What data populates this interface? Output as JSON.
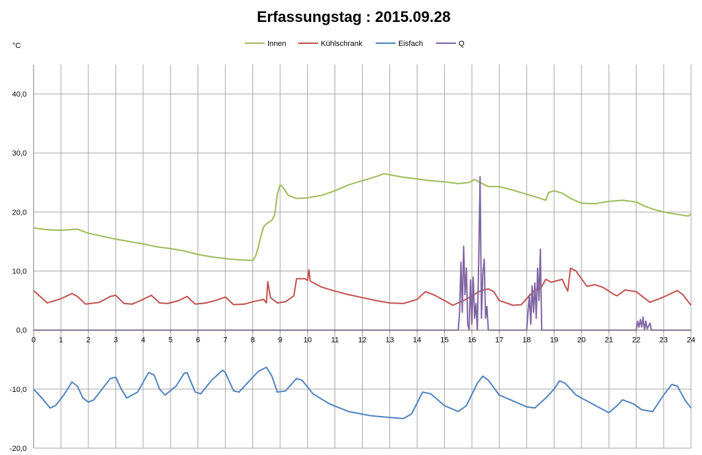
{
  "chart_data": {
    "type": "line",
    "title": "Erfassungstag  : 2015.09.28",
    "ylabel": "°C",
    "xlabel": "",
    "xlim": [
      0,
      24
    ],
    "ylim": [
      -20,
      45
    ],
    "grid": true,
    "legend_placement": "top-center",
    "x_ticks": [
      "0",
      "1",
      "2",
      "3",
      "4",
      "5",
      "6",
      "7",
      "8",
      "9",
      "10",
      "11",
      "12",
      "13",
      "14",
      "15",
      "16",
      "17",
      "18",
      "19",
      "20",
      "21",
      "22",
      "23",
      "24"
    ],
    "y_ticks": [
      {
        "value": 40,
        "label": "40,0"
      },
      {
        "value": 30,
        "label": "30,0"
      },
      {
        "value": 20,
        "label": "20,0"
      },
      {
        "value": 10,
        "label": "10,0"
      },
      {
        "value": 0,
        "label": "0,0"
      },
      {
        "value": -10,
        "label": "-10,0"
      },
      {
        "value": -20,
        "label": "-20,0"
      }
    ],
    "series": [
      {
        "name": "Innen",
        "color": "#9bbb59",
        "points": [
          [
            0,
            17.3
          ],
          [
            0.5,
            17.0
          ],
          [
            1,
            16.9
          ],
          [
            1.6,
            17.1
          ],
          [
            2,
            16.4
          ],
          [
            2.5,
            15.9
          ],
          [
            3,
            15.4
          ],
          [
            3.5,
            15.0
          ],
          [
            4,
            14.6
          ],
          [
            4.5,
            14.1
          ],
          [
            5,
            13.8
          ],
          [
            5.5,
            13.4
          ],
          [
            6,
            12.8
          ],
          [
            6.5,
            12.4
          ],
          [
            7,
            12.1
          ],
          [
            7.5,
            11.9
          ],
          [
            8,
            11.8
          ],
          [
            8.1,
            12.5
          ],
          [
            8.2,
            14.0
          ],
          [
            8.3,
            16.0
          ],
          [
            8.4,
            17.5
          ],
          [
            8.5,
            18.0
          ],
          [
            8.7,
            18.6
          ],
          [
            8.8,
            19.5
          ],
          [
            8.9,
            23.0
          ],
          [
            9.0,
            24.6
          ],
          [
            9.1,
            24.2
          ],
          [
            9.3,
            22.8
          ],
          [
            9.6,
            22.3
          ],
          [
            10,
            22.4
          ],
          [
            10.5,
            22.8
          ],
          [
            11,
            23.6
          ],
          [
            11.5,
            24.6
          ],
          [
            12,
            25.3
          ],
          [
            12.5,
            26.0
          ],
          [
            12.8,
            26.5
          ],
          [
            13,
            26.3
          ],
          [
            13.5,
            25.9
          ],
          [
            14,
            25.6
          ],
          [
            14.5,
            25.3
          ],
          [
            15,
            25.1
          ],
          [
            15.5,
            24.8
          ],
          [
            15.9,
            25.0
          ],
          [
            16.1,
            25.5
          ],
          [
            16.3,
            25.0
          ],
          [
            16.6,
            24.3
          ],
          [
            17,
            24.3
          ],
          [
            17.5,
            23.7
          ],
          [
            18,
            23.0
          ],
          [
            18.5,
            22.3
          ],
          [
            18.7,
            22.0
          ],
          [
            18.8,
            23.3
          ],
          [
            19,
            23.6
          ],
          [
            19.3,
            23.2
          ],
          [
            19.6,
            22.3
          ],
          [
            20,
            21.5
          ],
          [
            20.5,
            21.4
          ],
          [
            21,
            21.8
          ],
          [
            21.5,
            22.0
          ],
          [
            22,
            21.7
          ],
          [
            22.3,
            21.0
          ],
          [
            22.6,
            20.5
          ],
          [
            23,
            20.0
          ],
          [
            23.5,
            19.6
          ],
          [
            23.9,
            19.3
          ],
          [
            24,
            19.7
          ]
        ]
      },
      {
        "name": "Kühlschrank",
        "color": "#c0504d",
        "points": [
          [
            0,
            6.7
          ],
          [
            0.5,
            4.6
          ],
          [
            1,
            5.3
          ],
          [
            1.4,
            6.2
          ],
          [
            1.6,
            5.7
          ],
          [
            1.9,
            4.4
          ],
          [
            2.4,
            4.7
          ],
          [
            2.8,
            5.7
          ],
          [
            3,
            5.9
          ],
          [
            3.3,
            4.5
          ],
          [
            3.6,
            4.4
          ],
          [
            4,
            5.2
          ],
          [
            4.3,
            5.9
          ],
          [
            4.6,
            4.6
          ],
          [
            4.9,
            4.5
          ],
          [
            5.3,
            5.0
          ],
          [
            5.6,
            5.7
          ],
          [
            5.9,
            4.4
          ],
          [
            6.3,
            4.6
          ],
          [
            6.7,
            5.1
          ],
          [
            7,
            5.6
          ],
          [
            7.3,
            4.3
          ],
          [
            7.7,
            4.4
          ],
          [
            8,
            4.8
          ],
          [
            8.4,
            5.2
          ],
          [
            8.5,
            4.6
          ],
          [
            8.55,
            8.2
          ],
          [
            8.65,
            5.5
          ],
          [
            8.9,
            4.6
          ],
          [
            9.2,
            4.8
          ],
          [
            9.5,
            5.8
          ],
          [
            9.6,
            8.7
          ],
          [
            9.9,
            8.7
          ],
          [
            10.0,
            8.4
          ],
          [
            10.05,
            10.2
          ],
          [
            10.1,
            8.3
          ],
          [
            10.5,
            7.3
          ],
          [
            11,
            6.6
          ],
          [
            11.5,
            6.0
          ],
          [
            12,
            5.5
          ],
          [
            12.5,
            5.0
          ],
          [
            13,
            4.6
          ],
          [
            13.5,
            4.5
          ],
          [
            14,
            5.2
          ],
          [
            14.3,
            6.5
          ],
          [
            14.6,
            6.0
          ],
          [
            15,
            5.0
          ],
          [
            15.3,
            4.2
          ],
          [
            15.7,
            5.0
          ],
          [
            16,
            5.8
          ],
          [
            16.3,
            6.6
          ],
          [
            16.6,
            7.0
          ],
          [
            16.8,
            6.5
          ],
          [
            17,
            5.0
          ],
          [
            17.5,
            4.2
          ],
          [
            17.8,
            4.3
          ],
          [
            18.1,
            5.8
          ],
          [
            18.3,
            6.8
          ],
          [
            18.5,
            7.0
          ],
          [
            18.7,
            8.6
          ],
          [
            18.9,
            8.1
          ],
          [
            19.3,
            8.6
          ],
          [
            19.4,
            7.5
          ],
          [
            19.5,
            6.6
          ],
          [
            19.6,
            10.5
          ],
          [
            19.8,
            10.0
          ],
          [
            20.2,
            7.4
          ],
          [
            20.5,
            7.7
          ],
          [
            20.8,
            7.2
          ],
          [
            21.2,
            6.0
          ],
          [
            21.3,
            5.8
          ],
          [
            21.6,
            6.8
          ],
          [
            22,
            6.5
          ],
          [
            22.5,
            4.7
          ],
          [
            23,
            5.6
          ],
          [
            23.5,
            6.7
          ],
          [
            23.7,
            6.0
          ],
          [
            24,
            4.2
          ]
        ]
      },
      {
        "name": "Eisfach",
        "color": "#4f81bd",
        "points": [
          [
            0,
            -10.0
          ],
          [
            0.3,
            -11.5
          ],
          [
            0.6,
            -13.2
          ],
          [
            0.8,
            -12.8
          ],
          [
            1.1,
            -11.0
          ],
          [
            1.4,
            -8.8
          ],
          [
            1.6,
            -9.5
          ],
          [
            1.8,
            -11.5
          ],
          [
            2,
            -12.2
          ],
          [
            2.2,
            -11.8
          ],
          [
            2.5,
            -10.0
          ],
          [
            2.8,
            -8.2
          ],
          [
            3.0,
            -8.0
          ],
          [
            3.2,
            -10.0
          ],
          [
            3.4,
            -11.5
          ],
          [
            3.8,
            -10.5
          ],
          [
            4.1,
            -8.0
          ],
          [
            4.2,
            -7.2
          ],
          [
            4.4,
            -7.6
          ],
          [
            4.6,
            -10.0
          ],
          [
            4.8,
            -11.0
          ],
          [
            5.2,
            -9.5
          ],
          [
            5.5,
            -7.3
          ],
          [
            5.6,
            -7.2
          ],
          [
            5.9,
            -10.5
          ],
          [
            6.1,
            -10.8
          ],
          [
            6.5,
            -8.5
          ],
          [
            6.9,
            -6.8
          ],
          [
            7.0,
            -7.2
          ],
          [
            7.3,
            -10.3
          ],
          [
            7.5,
            -10.5
          ],
          [
            7.8,
            -9.0
          ],
          [
            8.2,
            -7.0
          ],
          [
            8.5,
            -6.3
          ],
          [
            8.7,
            -7.8
          ],
          [
            8.9,
            -10.5
          ],
          [
            9.2,
            -10.3
          ],
          [
            9.6,
            -8.2
          ],
          [
            9.8,
            -8.5
          ],
          [
            10.2,
            -10.8
          ],
          [
            10.8,
            -12.5
          ],
          [
            11.5,
            -13.8
          ],
          [
            12.3,
            -14.5
          ],
          [
            13,
            -14.8
          ],
          [
            13.5,
            -15.0
          ],
          [
            13.8,
            -14.2
          ],
          [
            14.2,
            -10.5
          ],
          [
            14.5,
            -10.8
          ],
          [
            15,
            -12.8
          ],
          [
            15.5,
            -13.8
          ],
          [
            15.8,
            -12.8
          ],
          [
            16.2,
            -9.0
          ],
          [
            16.4,
            -7.8
          ],
          [
            16.6,
            -8.5
          ],
          [
            17,
            -11.0
          ],
          [
            17.5,
            -12.0
          ],
          [
            18,
            -13.0
          ],
          [
            18.3,
            -13.2
          ],
          [
            18.7,
            -11.5
          ],
          [
            19.0,
            -10.0
          ],
          [
            19.2,
            -8.6
          ],
          [
            19.4,
            -9.0
          ],
          [
            19.8,
            -11.0
          ],
          [
            20.2,
            -12.0
          ],
          [
            20.6,
            -13.0
          ],
          [
            21,
            -14.0
          ],
          [
            21.3,
            -12.8
          ],
          [
            21.5,
            -11.8
          ],
          [
            21.9,
            -12.5
          ],
          [
            22.2,
            -13.5
          ],
          [
            22.6,
            -13.8
          ],
          [
            23,
            -11.0
          ],
          [
            23.3,
            -9.2
          ],
          [
            23.5,
            -9.5
          ],
          [
            23.8,
            -12.0
          ],
          [
            24,
            -13.2
          ]
        ]
      },
      {
        "name": "Q",
        "color": "#8064a2",
        "points": [
          [
            0,
            0
          ],
          [
            15.5,
            0
          ],
          [
            15.55,
            3
          ],
          [
            15.6,
            11.5
          ],
          [
            15.65,
            3
          ],
          [
            15.7,
            14.2
          ],
          [
            15.75,
            6
          ],
          [
            15.8,
            10.5
          ],
          [
            15.85,
            1
          ],
          [
            15.9,
            0
          ],
          [
            15.95,
            8.5
          ],
          [
            16.0,
            1
          ],
          [
            16.05,
            9.0
          ],
          [
            16.1,
            2
          ],
          [
            16.15,
            4.5
          ],
          [
            16.2,
            0
          ],
          [
            16.25,
            12.0
          ],
          [
            16.3,
            26.0
          ],
          [
            16.35,
            2
          ],
          [
            16.4,
            9.5
          ],
          [
            16.45,
            12.0
          ],
          [
            16.5,
            2
          ],
          [
            16.55,
            4.0
          ],
          [
            16.6,
            0
          ],
          [
            18,
            0
          ],
          [
            18.05,
            3
          ],
          [
            18.1,
            6.0
          ],
          [
            18.15,
            1
          ],
          [
            18.2,
            7.5
          ],
          [
            18.25,
            3
          ],
          [
            18.3,
            8.0
          ],
          [
            18.35,
            2
          ],
          [
            18.4,
            10.5
          ],
          [
            18.45,
            5
          ],
          [
            18.5,
            13.7
          ],
          [
            18.55,
            0
          ],
          [
            22,
            0
          ],
          [
            22.05,
            1.5
          ],
          [
            22.1,
            0.5
          ],
          [
            22.15,
            1.8
          ],
          [
            22.2,
            0.5
          ],
          [
            22.25,
            2.2
          ],
          [
            22.3,
            0
          ],
          [
            22.35,
            1.5
          ],
          [
            22.4,
            0.2
          ],
          [
            22.5,
            1.2
          ],
          [
            22.55,
            0
          ],
          [
            24,
            0
          ]
        ]
      }
    ]
  }
}
